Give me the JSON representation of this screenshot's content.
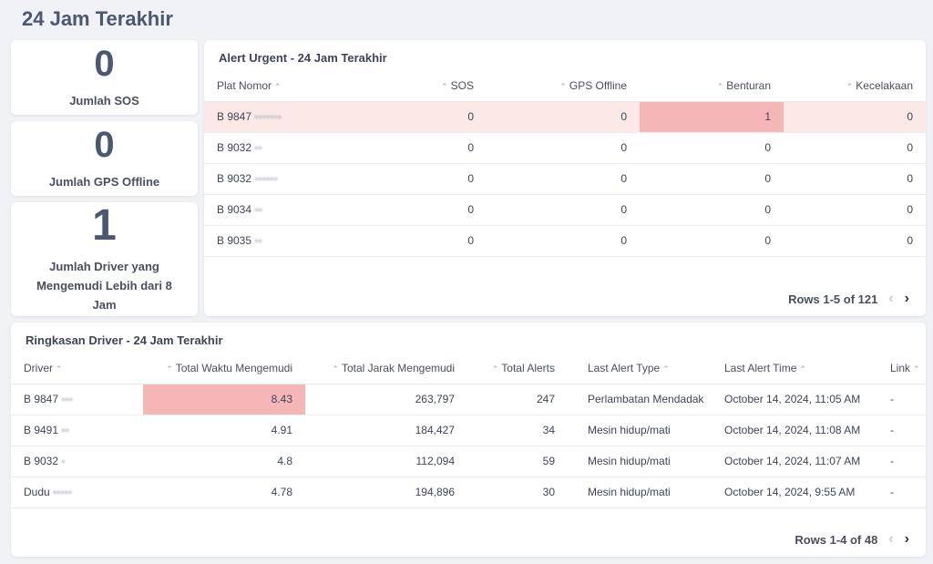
{
  "page": {
    "title": "24 Jam Terakhir"
  },
  "stats": [
    {
      "value": "0",
      "label": "Jumlah SOS"
    },
    {
      "value": "0",
      "label": "Jumlah GPS Offline"
    },
    {
      "value": "1",
      "label": "Jumlah Driver yang Mengemudi Lebih dari 8 Jam"
    }
  ],
  "alert_table": {
    "title": "Alert Urgent - 24 Jam Terakhir",
    "columns": [
      "Plat Nomor",
      "SOS",
      "GPS Offline",
      "Benturan",
      "Kecelakaan"
    ],
    "rows": [
      {
        "plate": "B 9847",
        "sos": "0",
        "gps": "0",
        "benturan": "1",
        "kecelakaan": "0"
      },
      {
        "plate": "B 9032",
        "sos": "0",
        "gps": "0",
        "benturan": "0",
        "kecelakaan": "0"
      },
      {
        "plate": "B 9032",
        "sos": "0",
        "gps": "0",
        "benturan": "0",
        "kecelakaan": "0"
      },
      {
        "plate": "B 9034",
        "sos": "0",
        "gps": "0",
        "benturan": "0",
        "kecelakaan": "0"
      },
      {
        "plate": "B 9035",
        "sos": "0",
        "gps": "0",
        "benturan": "0",
        "kecelakaan": "0"
      }
    ],
    "pager": "Rows 1-5 of 121"
  },
  "driver_table": {
    "title": "Ringkasan Driver - 24 Jam Terakhir",
    "columns": [
      "Driver",
      "Total Waktu Mengemudi",
      "Total Jarak Mengemudi",
      "Total Alerts",
      "Last Alert Type",
      "Last Alert Time",
      "Link"
    ],
    "rows": [
      {
        "driver": "B 9847",
        "waktu": "8.43",
        "jarak": "263,797",
        "alerts": "247",
        "type": "Perlambatan Mendadak",
        "time": "October 14, 2024, 11:05 AM",
        "link": "-"
      },
      {
        "driver": "B 9491",
        "waktu": "4.91",
        "jarak": "184,427",
        "alerts": "34",
        "type": "Mesin hidup/mati",
        "time": "October 14, 2024, 11:08 AM",
        "link": "-"
      },
      {
        "driver": "B 9032",
        "waktu": "4.8",
        "jarak": "112,094",
        "alerts": "59",
        "type": "Mesin hidup/mati",
        "time": "October 14, 2024, 11:07 AM",
        "link": "-"
      },
      {
        "driver": "Dudu",
        "waktu": "4.78",
        "jarak": "194,896",
        "alerts": "30",
        "type": "Mesin hidup/mati",
        "time": "October 14, 2024, 9:55 AM",
        "link": "-"
      }
    ],
    "pager": "Rows 1-4 of 48"
  },
  "icons": {
    "sort": "chevron-up-icon",
    "prev": "chevron-left-icon",
    "next": "chevron-right-icon"
  }
}
